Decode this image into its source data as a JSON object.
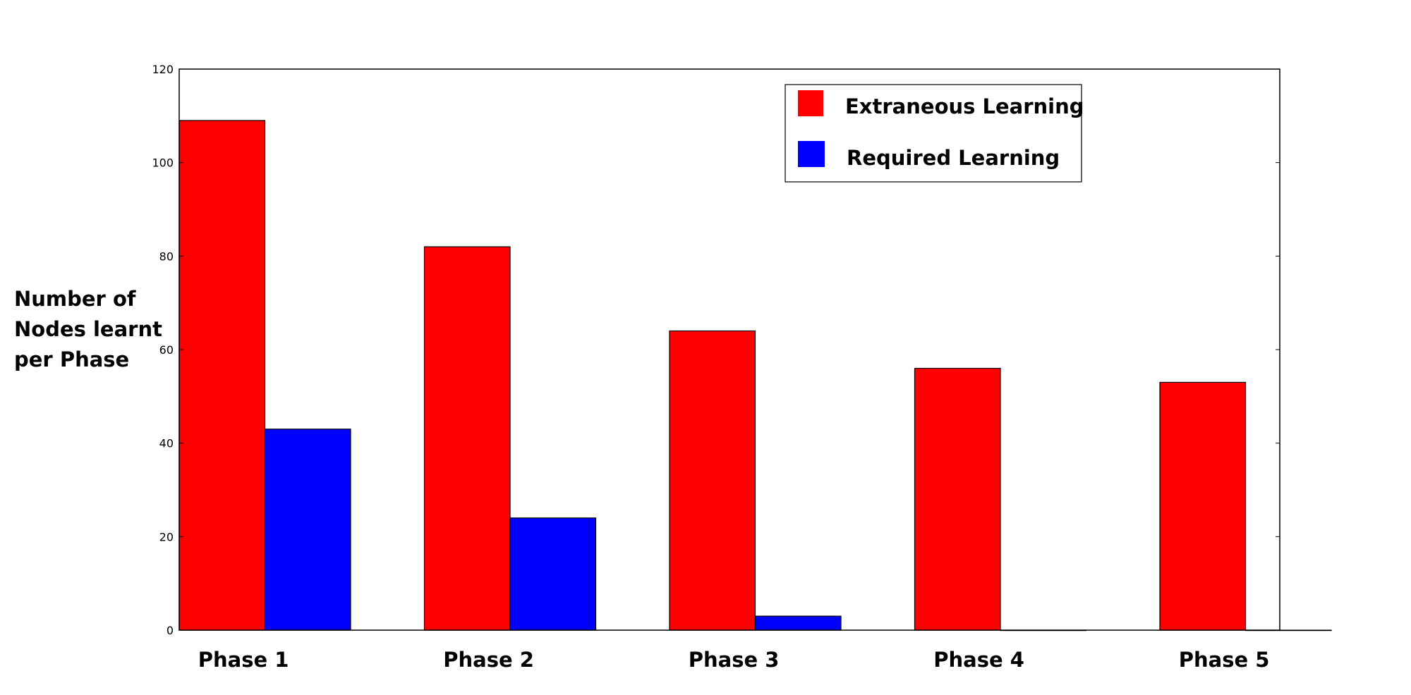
{
  "chart_data": {
    "type": "bar",
    "title": "",
    "xlabel": "",
    "ylabel": [
      "Number of",
      "Nodes learnt",
      "per Phase"
    ],
    "categories": [
      "Phase 1",
      "Phase 2",
      "Phase 3",
      "Phase 4",
      "Phase 5"
    ],
    "series": [
      {
        "name": "Extraneous Learning",
        "color": "#ff0000",
        "values": [
          109,
          82,
          64,
          56,
          53
        ]
      },
      {
        "name": "Required Learning",
        "color": "#0000ff",
        "values": [
          43,
          24,
          3,
          0,
          0
        ]
      }
    ],
    "ylim": [
      0,
      120
    ],
    "yticks": [
      "0",
      "20",
      "40",
      "60",
      "80",
      "100",
      "120"
    ],
    "grid": false,
    "legend": "top-right"
  }
}
